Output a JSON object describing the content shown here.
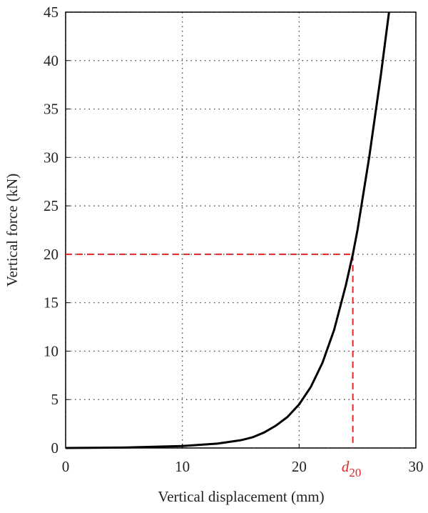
{
  "chart_data": {
    "type": "line",
    "xlabel": "Vertical displacement (mm)",
    "ylabel": "Vertical force (kN)",
    "x": [
      0,
      5,
      10,
      13,
      15,
      16,
      17,
      18,
      19,
      20,
      21,
      22,
      23,
      24,
      24.6,
      25,
      26,
      27,
      27.7
    ],
    "series": [
      {
        "color": "#000000",
        "values": [
          0,
          0.05,
          0.2,
          0.45,
          0.8,
          1.1,
          1.6,
          2.3,
          3.2,
          4.5,
          6.3,
          8.8,
          12.2,
          16.8,
          20,
          22.5,
          30,
          38.5,
          45
        ]
      }
    ],
    "xlim": [
      0,
      30
    ],
    "xticks": [
      0,
      10,
      20,
      30
    ],
    "ylim": [
      0,
      45
    ],
    "yticks": [
      0,
      5,
      10,
      15,
      20,
      25,
      30,
      35,
      40,
      45
    ],
    "grid": true,
    "reference": {
      "x": 24.6,
      "y": 20,
      "color": "#e0262b",
      "label": "d",
      "label_sub": "20"
    }
  }
}
